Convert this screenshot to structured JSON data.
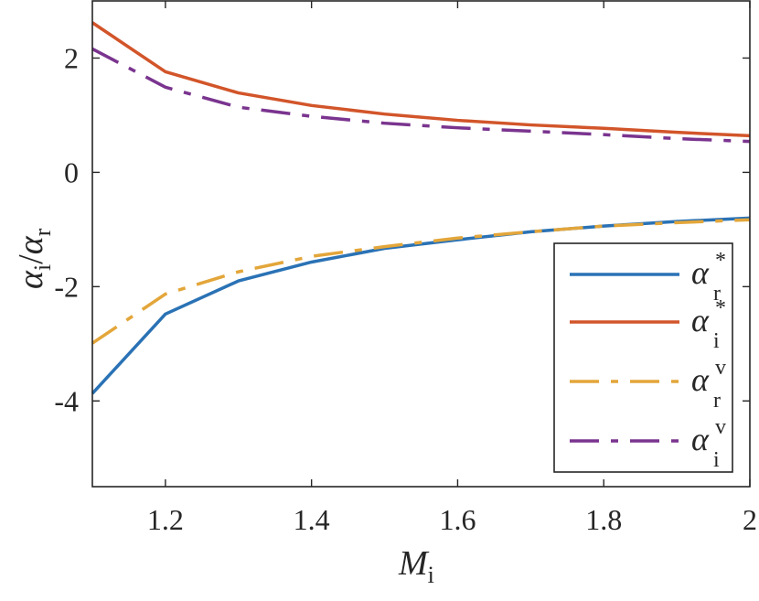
{
  "chart_data": {
    "type": "line",
    "title": "",
    "xlabel": {
      "main": "M",
      "sub": "i"
    },
    "ylabel": {
      "num": "α",
      "num_sub": "i",
      "sep": "/",
      "den": "α",
      "den_sub": "r"
    },
    "xlim": [
      1.1,
      2
    ],
    "ylim": [
      -5.5,
      3
    ],
    "xticks": [
      1.2,
      1.4,
      1.6,
      1.8,
      2
    ],
    "xtick_labels": [
      "1.2",
      "1.4",
      "1.6",
      "1.8",
      "2"
    ],
    "yticks": [
      2,
      0,
      -2,
      -4
    ],
    "ytick_labels": [
      "2",
      "0",
      "-2",
      "-4"
    ],
    "grid": false,
    "legend_placement": "bottom-right",
    "x": [
      1.1,
      1.2,
      1.3,
      1.4,
      1.5,
      1.6,
      1.7,
      1.8,
      1.9,
      2.0
    ],
    "series": [
      {
        "name": "α_r^*",
        "base": "α",
        "sub": "r",
        "sup": "*",
        "color": "#2a72b5",
        "style": "solid",
        "values": [
          -3.87,
          -2.48,
          -1.9,
          -1.57,
          -1.33,
          -1.18,
          -1.04,
          -0.94,
          -0.86,
          -0.8
        ]
      },
      {
        "name": "α_i^*",
        "base": "α",
        "sub": "i",
        "sup": "*",
        "color": "#d2552a",
        "style": "solid",
        "values": [
          2.62,
          1.76,
          1.39,
          1.17,
          1.02,
          0.91,
          0.83,
          0.77,
          0.7,
          0.64
        ]
      },
      {
        "name": "α_r^v",
        "base": "α",
        "sub": "r",
        "sup": "v",
        "color": "#e3a63a",
        "style": "dashdot",
        "values": [
          -2.99,
          -2.13,
          -1.74,
          -1.47,
          -1.3,
          -1.15,
          -1.04,
          -0.94,
          -0.88,
          -0.83
        ]
      },
      {
        "name": "α_i^v",
        "base": "α",
        "sub": "i",
        "sup": "v",
        "color": "#7a348f",
        "style": "dashdot",
        "values": [
          2.16,
          1.49,
          1.14,
          0.98,
          0.86,
          0.78,
          0.72,
          0.66,
          0.59,
          0.54
        ]
      }
    ]
  }
}
